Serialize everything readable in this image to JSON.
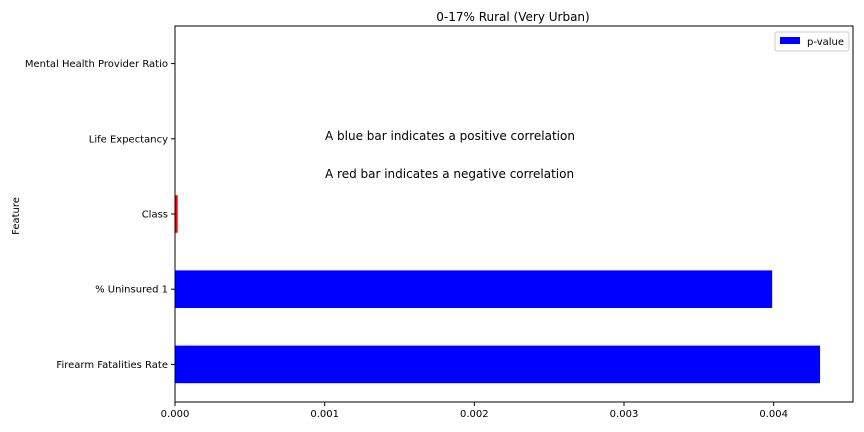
{
  "chart_data": {
    "type": "bar",
    "orientation": "horizontal",
    "title": "0-17% Rural (Very Urban)",
    "xlabel": "",
    "ylabel": "Feature",
    "categories": [
      "Firearm Fatalities Rate",
      "% Uninsured 1",
      "Class",
      "Life Expectancy",
      "Mental Health Provider Ratio"
    ],
    "series": [
      {
        "name": "p-value",
        "values": [
          0.00431,
          0.00399,
          1.8e-05,
          0.0,
          0.0
        ],
        "colors": [
          "#0000ff",
          "#0000ff",
          "#ff0000",
          "#0000ff",
          "#0000ff"
        ]
      }
    ],
    "xlim": [
      0,
      0.00453
    ],
    "xticks": [
      0,
      0.001,
      0.002,
      0.003,
      0.004
    ],
    "xtick_labels": [
      "0.000",
      "0.001",
      "0.002",
      "0.003",
      "0.004"
    ],
    "grid": false,
    "legend_position": "top-right",
    "annotations": [
      "A blue bar indicates a positive correlation",
      "A red bar indicates a negative correlation"
    ]
  }
}
